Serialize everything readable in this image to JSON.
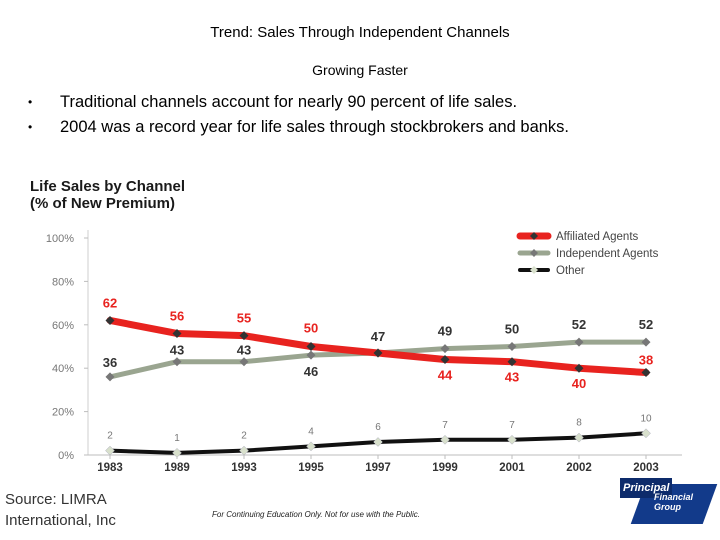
{
  "header": {
    "title": "Trend: Sales Through Independent Channels",
    "subtitle": "Growing Faster",
    "bullets": [
      "Traditional channels account for nearly 90 percent of life sales.",
      "2004 was a record year for life sales through stockbrokers and banks."
    ]
  },
  "chart_heading": {
    "line1": "Life Sales by Channel",
    "line2": "(% of New Premium)"
  },
  "chart_data": {
    "type": "line",
    "title": "Life Sales by Channel (% of New Premium)",
    "categories": [
      "1983",
      "1989",
      "1993",
      "1995",
      "1997",
      "1999",
      "2001",
      "2002",
      "2003"
    ],
    "y_ticks": [
      "100%",
      "80%",
      "60%",
      "40%",
      "20%",
      "0%"
    ],
    "ylim": [
      0,
      100
    ],
    "grid": false,
    "legend_placement": "top-right",
    "series": [
      {
        "name": "Affiliated Agents",
        "color": "#e8231f",
        "values": [
          62,
          56,
          55,
          50,
          47,
          44,
          43,
          40,
          38
        ],
        "labels": [
          "62",
          "56",
          "55",
          "50",
          "47",
          "44",
          "43",
          "40",
          "38"
        ]
      },
      {
        "name": "Independent Agents",
        "color": "#9aa590",
        "values": [
          36,
          43,
          43,
          46,
          47,
          49,
          50,
          52,
          52
        ],
        "labels": [
          "36",
          "43",
          "43",
          "46",
          "",
          "49",
          "50",
          "52",
          "52"
        ]
      },
      {
        "name": "Other",
        "color": "#111111",
        "values": [
          2,
          1,
          2,
          4,
          6,
          7,
          7,
          8,
          10
        ],
        "labels": [
          "2",
          "1",
          "2",
          "4",
          "6",
          "7",
          "7",
          "8",
          "10"
        ]
      }
    ],
    "label_colors": {
      "red_label": "#e8231f",
      "dark_label": "#333333",
      "gray_label": "#777777"
    }
  },
  "footer": {
    "source_line1": "Source: LIMRA",
    "source_line2": "International, Inc",
    "disclaimer": "For Continuing Education Only.  Not for use with the Public."
  },
  "logo": {
    "word": "Principal",
    "sub1": "Financial",
    "sub2": "Group"
  }
}
